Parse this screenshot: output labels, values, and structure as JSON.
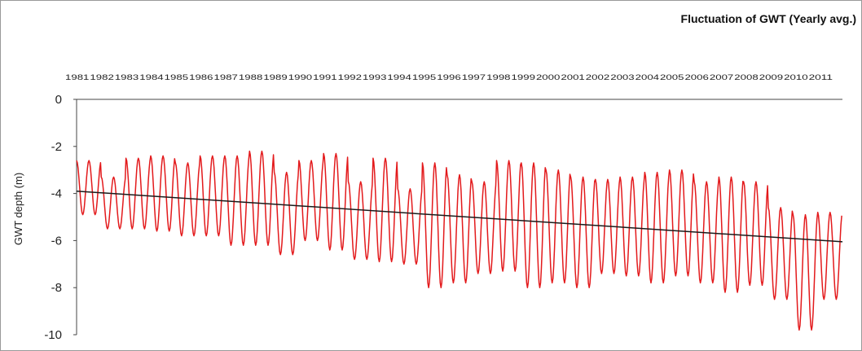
{
  "chart_data": {
    "type": "line",
    "title": "Fluctuation of GWT (Yearly avg.)",
    "xlabel": "",
    "ylabel": "GWT depth (m)",
    "ylim": [
      -10,
      0
    ],
    "yticks": [
      0,
      -2,
      -4,
      -6,
      -8,
      -10
    ],
    "x_tick_labels": [
      "1981",
      "1982",
      "1983",
      "1984",
      "1985",
      "1986",
      "1987",
      "1988",
      "1989",
      "1990",
      "1991",
      "1992",
      "1993",
      "1994",
      "1995",
      "1996",
      "1997",
      "1998",
      "1999",
      "2000",
      "2001",
      "2002",
      "2003",
      "2004",
      "2005",
      "2006",
      "2007",
      "2008",
      "2009",
      "2010",
      "2011"
    ],
    "x_axis_position": "top",
    "grid": false,
    "series": [
      {
        "color": "#e31a1c",
        "style": "seasonal oscillation, 2 cycles per year",
        "cycles": [
          [
            -4.9,
            -2.6
          ],
          [
            -5.5,
            -3.3
          ],
          [
            -5.5,
            -2.5
          ],
          [
            -5.6,
            -2.4
          ],
          [
            -5.8,
            -2.7
          ],
          [
            -5.8,
            -2.4
          ],
          [
            -6.2,
            -2.4
          ],
          [
            -6.2,
            -2.2
          ],
          [
            -6.6,
            -3.1
          ],
          [
            -6.0,
            -2.6
          ],
          [
            -6.4,
            -2.3
          ],
          [
            -6.8,
            -3.5
          ],
          [
            -6.9,
            -2.5
          ],
          [
            -7.0,
            -3.8
          ],
          [
            -8.0,
            -2.7
          ],
          [
            -7.8,
            -3.2
          ],
          [
            -7.4,
            -3.5
          ],
          [
            -7.3,
            -2.6
          ],
          [
            -8.0,
            -2.7
          ],
          [
            -7.8,
            -3.0
          ],
          [
            -8.0,
            -3.3
          ],
          [
            -7.4,
            -3.4
          ],
          [
            -7.5,
            -3.3
          ],
          [
            -7.8,
            -3.1
          ],
          [
            -7.5,
            -3.0
          ],
          [
            -7.8,
            -3.5
          ],
          [
            -8.2,
            -3.3
          ],
          [
            -7.9,
            -3.5
          ],
          [
            -8.5,
            -4.6
          ],
          [
            -9.8,
            -4.9
          ],
          [
            -8.5,
            -4.8
          ]
        ]
      },
      {
        "color": "#1a1a1a",
        "style": "linear trend",
        "start": -3.9,
        "end": -6.05
      }
    ]
  }
}
